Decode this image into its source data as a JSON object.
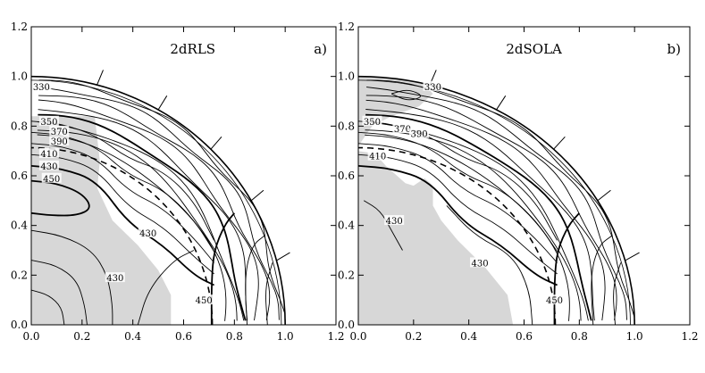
{
  "chart_data": [
    {
      "type": "contour",
      "title": "2dRLS",
      "panel_label": "a)",
      "xlim": [
        0.0,
        1.2
      ],
      "ylim": [
        0.0,
        1.2
      ],
      "x_ticks": [
        "0.0",
        "0.2",
        "0.4",
        "0.6",
        "0.8",
        "1.0",
        "1.2"
      ],
      "y_ticks": [
        "0.0",
        "0.2",
        "0.4",
        "0.6",
        "0.8",
        "1.0",
        "1.2"
      ],
      "grid": false,
      "outer_radius": 1.0,
      "inner_radius_dashed": 0.713,
      "contour_labels": [
        {
          "text": "330",
          "x": 0.04,
          "y": 0.96
        },
        {
          "text": "350",
          "x": 0.07,
          "y": 0.82
        },
        {
          "text": "370",
          "x": 0.11,
          "y": 0.78
        },
        {
          "text": "390",
          "x": 0.11,
          "y": 0.74
        },
        {
          "text": "410",
          "x": 0.07,
          "y": 0.69
        },
        {
          "text": "430",
          "x": 0.07,
          "y": 0.64
        },
        {
          "text": "450",
          "x": 0.08,
          "y": 0.59
        },
        {
          "text": "430",
          "x": 0.46,
          "y": 0.37
        },
        {
          "text": "430",
          "x": 0.33,
          "y": 0.19
        },
        {
          "text": "450",
          "x": 0.68,
          "y": 0.1
        }
      ]
    },
    {
      "type": "contour",
      "title": "2dSOLA",
      "panel_label": "b)",
      "xlim": [
        0.0,
        1.2
      ],
      "ylim": [
        0.0,
        1.2
      ],
      "x_ticks": [
        "0.0",
        "0.2",
        "0.4",
        "0.6",
        "0.8",
        "1.0",
        "1.2"
      ],
      "y_ticks": [
        "0.0",
        "0.2",
        "0.4",
        "0.6",
        "0.8",
        "1.0",
        "1.2"
      ],
      "grid": false,
      "outer_radius": 1.0,
      "inner_radius_dashed": 0.713,
      "contour_labels": [
        {
          "text": "330",
          "x": 0.27,
          "y": 0.96
        },
        {
          "text": "350",
          "x": 0.05,
          "y": 0.82
        },
        {
          "text": "370",
          "x": 0.16,
          "y": 0.79
        },
        {
          "text": "390",
          "x": 0.22,
          "y": 0.77
        },
        {
          "text": "410",
          "x": 0.07,
          "y": 0.68
        },
        {
          "text": "430",
          "x": 0.13,
          "y": 0.42
        },
        {
          "text": "430",
          "x": 0.44,
          "y": 0.25
        },
        {
          "text": "450",
          "x": 0.71,
          "y": 0.1
        }
      ]
    }
  ]
}
